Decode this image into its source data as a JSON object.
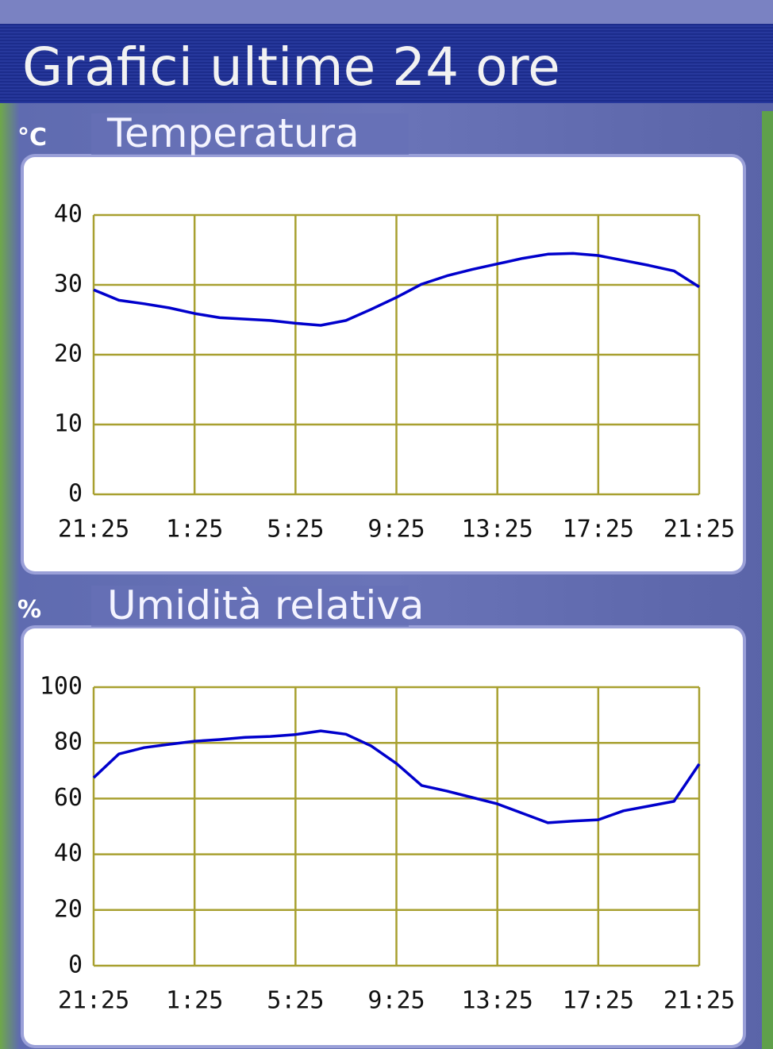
{
  "header": {
    "title": "Grafici ultime 24 ore"
  },
  "chart_data": [
    {
      "type": "line",
      "title": "Temperatura",
      "y_label": "°C",
      "x": [
        0,
        1,
        2,
        3,
        4,
        5,
        6,
        7,
        8,
        9,
        10,
        11,
        12,
        13,
        14,
        15,
        16,
        17,
        18,
        19,
        20,
        21,
        22,
        23,
        24
      ],
      "values": [
        29.3,
        27.8,
        27.3,
        26.7,
        25.9,
        25.3,
        25.1,
        24.9,
        24.5,
        24.2,
        24.9,
        26.5,
        28.2,
        30.1,
        31.3,
        32.2,
        33.0,
        33.8,
        34.4,
        34.5,
        34.2,
        33.5,
        32.8,
        32.0,
        29.7
      ],
      "color": "#0000cc",
      "xlim": [
        0,
        24
      ],
      "xticks": [
        {
          "value": 0,
          "label": "21:25"
        },
        {
          "value": 4,
          "label": "1:25"
        },
        {
          "value": 8,
          "label": "5:25"
        },
        {
          "value": 12,
          "label": "9:25"
        },
        {
          "value": 16,
          "label": "13:25"
        },
        {
          "value": 20,
          "label": "17:25"
        },
        {
          "value": 24,
          "label": "21:25"
        }
      ],
      "ylim": [
        0,
        40
      ],
      "yticks": [
        0,
        10,
        20,
        30,
        40
      ],
      "grid": true
    },
    {
      "type": "line",
      "title": "Umidità relativa",
      "y_label": "%",
      "x": [
        0,
        1,
        2,
        3,
        4,
        5,
        6,
        7,
        8,
        9,
        10,
        11,
        12,
        13,
        14,
        15,
        16,
        17,
        18,
        19,
        20,
        21,
        22,
        23,
        24
      ],
      "values": [
        67.5,
        76.0,
        78.3,
        79.5,
        80.6,
        81.2,
        82.0,
        82.3,
        83.0,
        84.3,
        83.1,
        78.9,
        72.6,
        64.7,
        62.7,
        60.4,
        58.1,
        54.7,
        51.3,
        51.9,
        52.4,
        55.6,
        57.3,
        59.0,
        72.4
      ],
      "color": "#0000cc",
      "xlim": [
        0,
        24
      ],
      "xticks": [
        {
          "value": 0,
          "label": "21:25"
        },
        {
          "value": 4,
          "label": "1:25"
        },
        {
          "value": 8,
          "label": "5:25"
        },
        {
          "value": 12,
          "label": "9:25"
        },
        {
          "value": 16,
          "label": "13:25"
        },
        {
          "value": 20,
          "label": "17:25"
        },
        {
          "value": 24,
          "label": "21:25"
        }
      ],
      "ylim": [
        0,
        100
      ],
      "yticks": [
        0,
        20,
        40,
        60,
        80,
        100
      ],
      "grid": true
    }
  ]
}
